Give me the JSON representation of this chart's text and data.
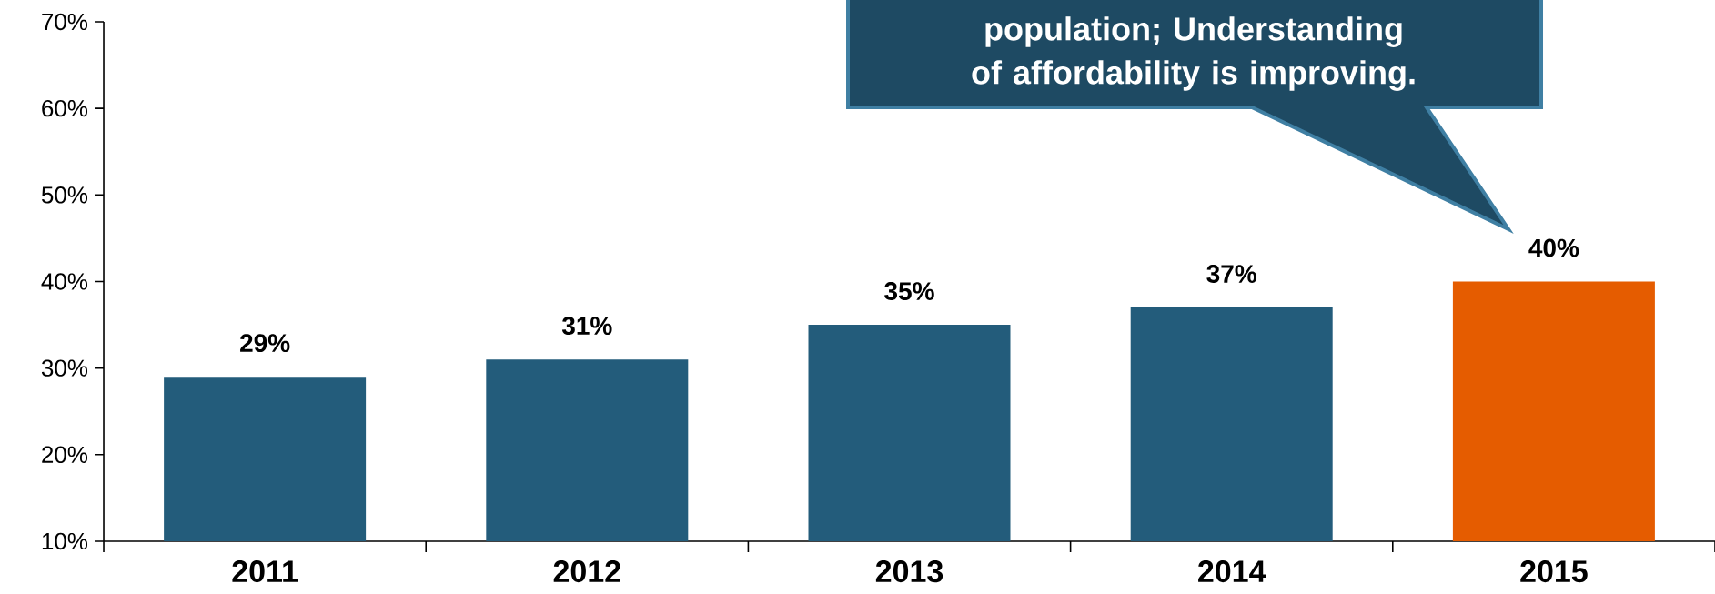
{
  "chart_data": {
    "type": "bar",
    "categories": [
      "2011",
      "2012",
      "2013",
      "2014",
      "2015"
    ],
    "values": [
      29,
      31,
      35,
      37,
      40
    ],
    "colors": [
      "#235c7b",
      "#235c7b",
      "#235c7b",
      "#235c7b",
      "#e55c00"
    ],
    "value_labels": [
      "29%",
      "31%",
      "35%",
      "37%",
      "40%"
    ],
    "ylim": [
      10,
      70
    ],
    "yticks": [
      {
        "value": 10,
        "label": "10%"
      },
      {
        "value": 20,
        "label": "20%"
      },
      {
        "value": 30,
        "label": "30%"
      },
      {
        "value": 40,
        "label": "40%"
      },
      {
        "value": 50,
        "label": "50%"
      },
      {
        "value": 60,
        "label": "60%"
      },
      {
        "value": 70,
        "label": "70%"
      }
    ],
    "annotations": [
      "population; Understanding of affordability is improving."
    ],
    "grid": false
  }
}
